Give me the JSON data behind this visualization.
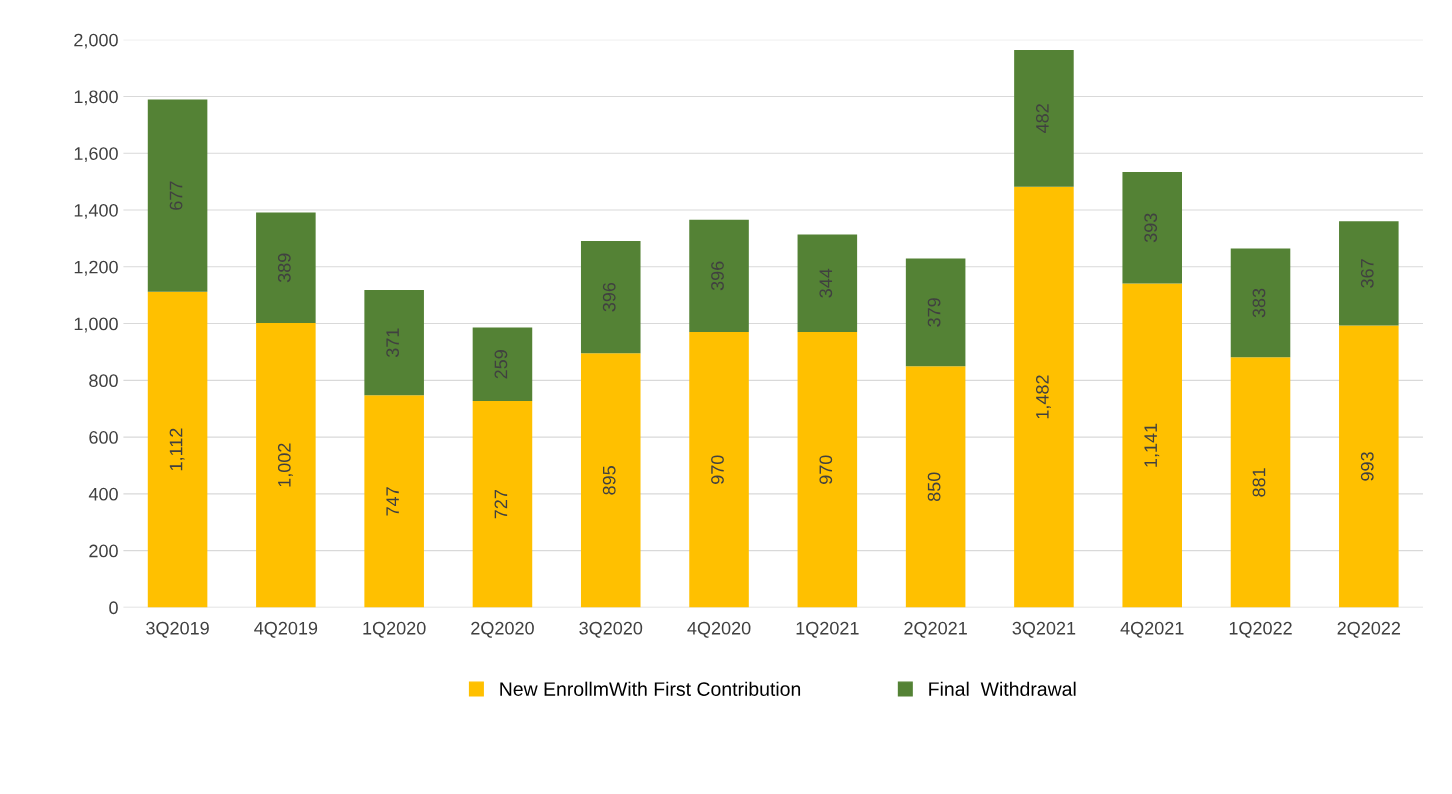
{
  "chart_data": {
    "type": "bar",
    "stacked": true,
    "categories": [
      "3Q2019",
      "4Q2019",
      "1Q2020",
      "2Q2020",
      "3Q2020",
      "4Q2020",
      "1Q2021",
      "2Q2021",
      "3Q2021",
      "4Q2021",
      "1Q2022",
      "2Q2022"
    ],
    "series": [
      {
        "name": "New EnrollmWith First Contribution",
        "color": "#ffc000",
        "values": [
          1112,
          1002,
          747,
          727,
          895,
          970,
          970,
          850,
          1482,
          1141,
          881,
          993
        ],
        "value_labels": [
          "1,112",
          "1,002",
          "747",
          "727",
          "895",
          "970",
          "970",
          "850",
          "1,482",
          "1,141",
          "881",
          "993"
        ]
      },
      {
        "name": "Final  Withdrawal",
        "color": "#548235",
        "values": [
          677,
          389,
          371,
          259,
          396,
          396,
          344,
          379,
          482,
          393,
          383,
          367
        ],
        "value_labels": [
          "677",
          "389",
          "371",
          "259",
          "396",
          "396",
          "344",
          "379",
          "482",
          "393",
          "383",
          "367"
        ]
      }
    ],
    "ylim": [
      0,
      2000
    ],
    "yticks": [
      0,
      200,
      400,
      600,
      800,
      {
        "value": 1000,
        "label": "1,000"
      },
      {
        "value": 1200,
        "label": "1,200"
      },
      {
        "value": 1400,
        "label": "1,400"
      },
      {
        "value": 1600,
        "label": "1,600"
      },
      {
        "value": 1800,
        "label": "1,800"
      },
      {
        "value": 2000,
        "label": "2,000"
      }
    ],
    "grid": "y",
    "legend": "bottom"
  }
}
